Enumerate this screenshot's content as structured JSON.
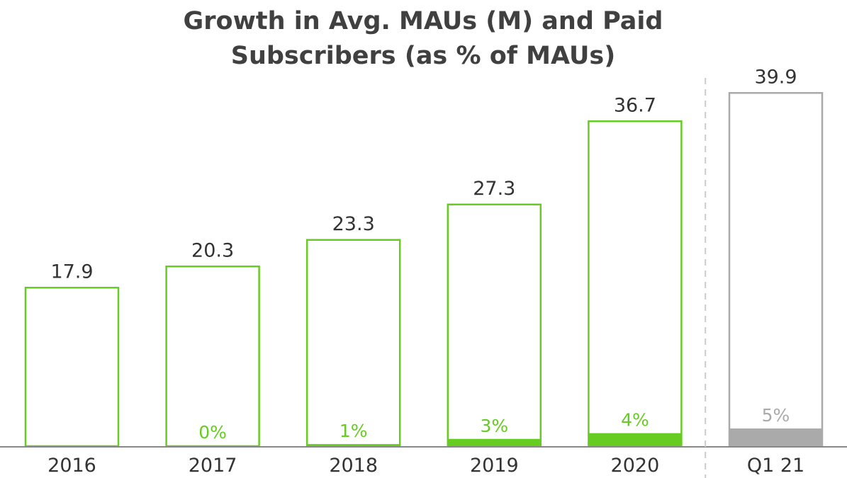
{
  "chart_data": {
    "type": "bar",
    "title": [
      "Growth in Avg. MAUs (M) and Paid",
      "Subscribers (as % of MAUs)"
    ],
    "categories": [
      "2016",
      "2017",
      "2018",
      "2019",
      "2020",
      "Q1 21"
    ],
    "series": [
      {
        "values": [
          17.9,
          20.3,
          23.3,
          27.3,
          36.7,
          39.9
        ],
        "value_labels": [
          "17.9",
          "20.3",
          "23.3",
          "27.3",
          "36.7",
          "39.9"
        ]
      },
      {
        "values": [
          null,
          0,
          1,
          3,
          4,
          5
        ],
        "value_labels": [
          "",
          "0%",
          "1%",
          "3%",
          "4%",
          "5%"
        ]
      }
    ],
    "ylim": [
      0,
      40
    ],
    "grid": false,
    "legend": "none",
    "separator_before": "Q1 21",
    "colors": {
      "actual": "#66cc22",
      "latest": "#aaaaaa",
      "text": "#333333",
      "title": "#404040",
      "axis": "#888888"
    }
  }
}
